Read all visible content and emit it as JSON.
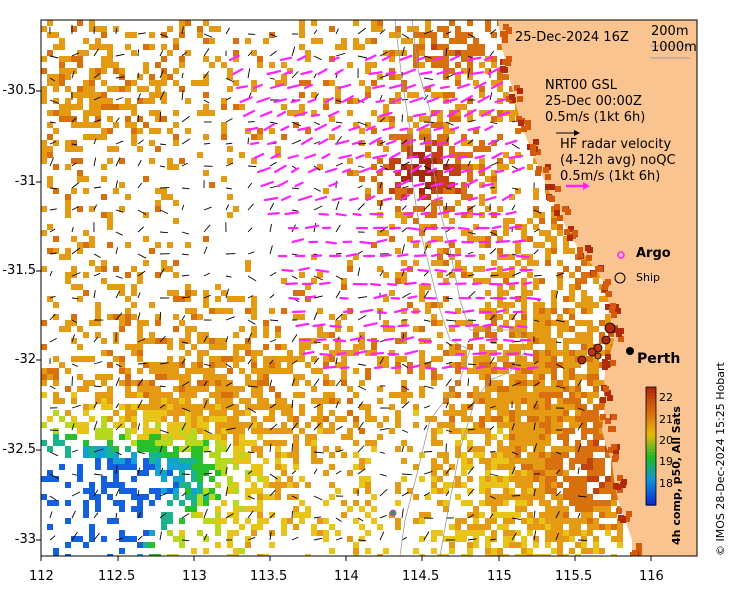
{
  "title": "25-Dec-2024 16Z",
  "depth_legend": {
    "contour1": "200m",
    "contour2": "1000m"
  },
  "gsl": {
    "line1": "NRT00 GSL",
    "line2": "25-Dec 00:00Z",
    "line3": "0.5m/s (1kt 6h)"
  },
  "hf": {
    "line1": "HF radar velocity",
    "line2": "(4-12h avg) noQC",
    "line3": "0.5m/s (1kt 6h)"
  },
  "legend": {
    "argo": "Argo",
    "ship": "Ship"
  },
  "place": {
    "perth": "Perth"
  },
  "colorbar": {
    "title": "4h comp, p50, All Sats",
    "ticks": [
      "22",
      "21",
      "20",
      "19",
      "18"
    ],
    "colors": [
      "#b22a0c",
      "#d96a0c",
      "#e8b80c",
      "#1fb82a",
      "#1290d8",
      "#0e2fd0"
    ]
  },
  "credit": "© IMOS 28-Dec-2024 15:25 Hobart",
  "axes": {
    "x_ticks": [
      "112",
      "112.5",
      "113",
      "113.5",
      "114",
      "114.5",
      "115",
      "115.5",
      "116"
    ],
    "y_ticks": [
      "-30.5",
      "-31",
      "-31.5",
      "-32",
      "-32.5",
      "-33"
    ],
    "lon_range": [
      112,
      116.3
    ],
    "lat_range": [
      -30.1,
      -33.1
    ]
  },
  "colors": {
    "land": "#f9c490",
    "coast": "#cc2200",
    "hf_arrow": "#ff22ff",
    "current_arrow": "#000000"
  }
}
